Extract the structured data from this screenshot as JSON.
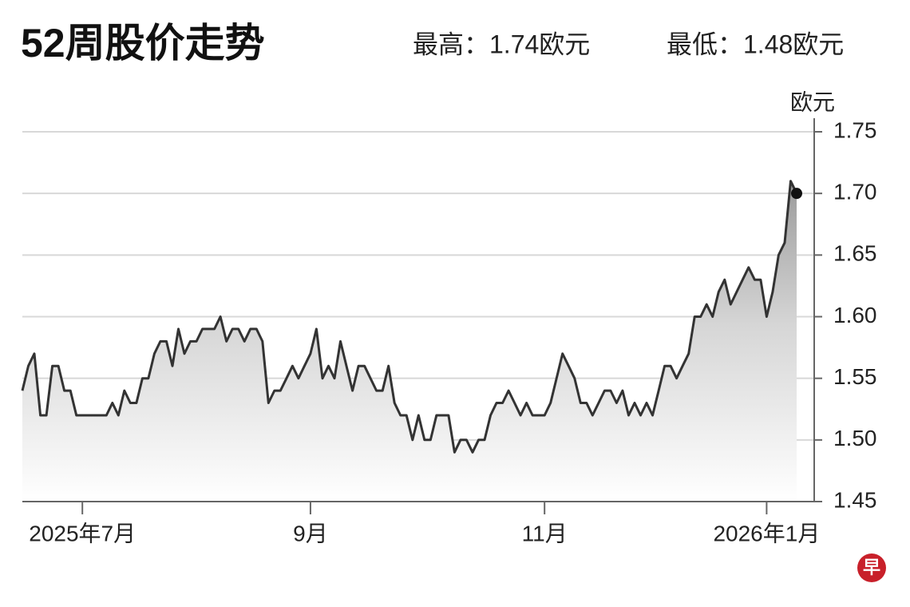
{
  "chart_data": {
    "type": "line",
    "title": "52周股价走势",
    "annotations": [
      "最高：1.74欧元",
      "最低：1.48欧元"
    ],
    "ylabel": "欧元",
    "logo": "早",
    "color": "#333333",
    "area": true,
    "grid": true,
    "ylim": [
      1.45,
      1.75
    ],
    "yticks": [
      1.45,
      {
        "value": 1.5,
        "label": "1.50"
      },
      1.55,
      {
        "value": 1.6,
        "label": "1.60"
      },
      1.65,
      {
        "value": 1.7,
        "label": "1.70"
      },
      1.75
    ],
    "categories": [
      null,
      null,
      null,
      null,
      null,
      null,
      null,
      null,
      null,
      null,
      "2025年7月",
      null,
      null,
      null,
      null,
      null,
      null,
      null,
      null,
      null,
      null,
      null,
      null,
      null,
      null,
      null,
      null,
      null,
      null,
      null,
      null,
      null,
      null,
      null,
      null,
      null,
      null,
      null,
      null,
      null,
      null,
      null,
      null,
      null,
      null,
      null,
      null,
      null,
      "9月",
      null,
      null,
      null,
      null,
      null,
      null,
      null,
      null,
      null,
      null,
      null,
      null,
      null,
      null,
      null,
      null,
      null,
      null,
      null,
      null,
      null,
      null,
      null,
      null,
      null,
      null,
      null,
      null,
      null,
      null,
      null,
      null,
      null,
      null,
      null,
      null,
      null,
      null,
      "11月",
      null,
      null,
      null,
      null,
      null,
      null,
      null,
      null,
      null,
      null,
      null,
      null,
      null,
      null,
      null,
      null,
      null,
      null,
      null,
      null,
      null,
      null,
      null,
      null,
      null,
      null,
      null,
      null,
      null,
      null,
      null,
      null,
      null,
      null,
      null,
      null,
      "2026年1月",
      null,
      null,
      null,
      null,
      null
    ],
    "values": [
      1.54,
      1.56,
      1.57,
      1.52,
      1.52,
      1.56,
      1.56,
      1.54,
      1.54,
      1.52,
      1.52,
      1.52,
      1.52,
      1.52,
      1.52,
      1.53,
      1.52,
      1.54,
      1.53,
      1.53,
      1.55,
      1.55,
      1.57,
      1.58,
      1.58,
      1.56,
      1.59,
      1.57,
      1.58,
      1.58,
      1.59,
      1.59,
      1.59,
      1.6,
      1.58,
      1.59,
      1.59,
      1.58,
      1.59,
      1.59,
      1.58,
      1.53,
      1.54,
      1.54,
      1.55,
      1.56,
      1.55,
      1.56,
      1.57,
      1.59,
      1.55,
      1.56,
      1.55,
      1.58,
      1.56,
      1.54,
      1.56,
      1.56,
      1.55,
      1.54,
      1.54,
      1.56,
      1.53,
      1.52,
      1.52,
      1.5,
      1.52,
      1.5,
      1.5,
      1.52,
      1.52,
      1.52,
      1.49,
      1.5,
      1.5,
      1.49,
      1.5,
      1.5,
      1.52,
      1.53,
      1.53,
      1.54,
      1.53,
      1.52,
      1.53,
      1.52,
      1.52,
      1.52,
      1.53,
      1.55,
      1.57,
      1.56,
      1.55,
      1.53,
      1.53,
      1.52,
      1.53,
      1.54,
      1.54,
      1.53,
      1.54,
      1.52,
      1.53,
      1.52,
      1.53,
      1.52,
      1.54,
      1.56,
      1.56,
      1.55,
      1.56,
      1.57,
      1.6,
      1.6,
      1.61,
      1.6,
      1.62,
      1.63,
      1.61,
      1.62,
      1.63,
      1.64,
      1.63,
      1.63,
      1.6,
      1.62,
      1.65,
      1.66,
      1.71,
      1.7
    ]
  }
}
